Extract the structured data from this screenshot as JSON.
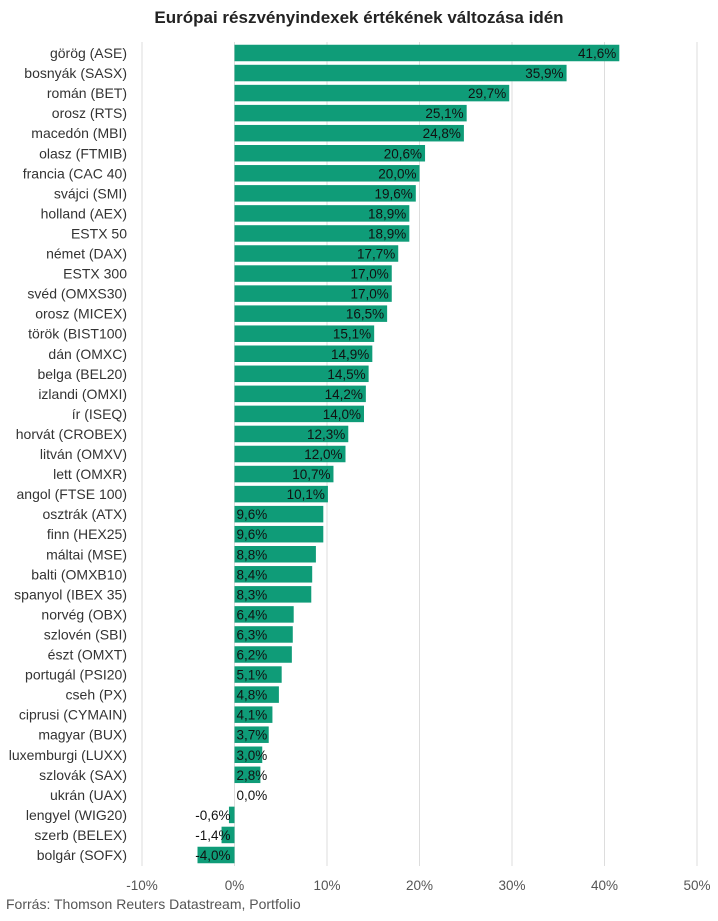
{
  "title": "Európai részvényindexek értékének változása idén",
  "source": "Forrás: Thomson Reuters Datastream, Portfolio",
  "colors": {
    "bar": "#0f9c78",
    "grid": "#dddddd",
    "text": "#333333"
  },
  "chart_data": {
    "type": "bar",
    "orientation": "horizontal",
    "title": "Európai részvényindexek értékének változása idén",
    "xlim": [
      -10,
      50
    ],
    "xticks": [
      -10,
      0,
      10,
      20,
      30,
      40,
      50
    ],
    "xtick_labels": [
      "-10%",
      "0%",
      "10%",
      "20%",
      "30%",
      "40%",
      "50%"
    ],
    "grid": true,
    "categories": [
      "görög (ASE)",
      "bosnyák (SASX)",
      "román (BET)",
      "orosz (RTS)",
      "macedón (MBI)",
      "olasz (FTMIB)",
      "francia (CAC 40)",
      "svájci (SMI)",
      "holland (AEX)",
      "ESTX 50",
      "német (DAX)",
      "ESTX 300",
      "svéd (OMXS30)",
      "orosz (MICEX)",
      "török (BIST100)",
      "dán (OMXC)",
      "belga (BEL20)",
      "izlandi (OMXI)",
      "ír (ISEQ)",
      "horvát (CROBEX)",
      "litván (OMXV)",
      "lett (OMXR)",
      "angol (FTSE 100)",
      "osztrák (ATX)",
      "finn (HEX25)",
      "máltai (MSE)",
      "balti (OMXB10)",
      "spanyol (IBEX 35)",
      "norvég (OBX)",
      "szlovén (SBI)",
      "észt (OMXT)",
      "portugál (PSI20)",
      "cseh (PX)",
      "ciprusi (CYMAIN)",
      "magyar (BUX)",
      "luxemburgi (LUXX)",
      "szlovák (SAX)",
      "ukrán (UAX)",
      "lengyel (WIG20)",
      "szerb (BELEX)",
      "bolgár (SOFX)"
    ],
    "values": [
      41.6,
      35.9,
      29.7,
      25.1,
      24.8,
      20.6,
      20.0,
      19.6,
      18.9,
      18.9,
      17.7,
      17.0,
      17.0,
      16.5,
      15.1,
      14.9,
      14.5,
      14.2,
      14.0,
      12.3,
      12.0,
      10.7,
      10.1,
      9.6,
      9.6,
      8.8,
      8.4,
      8.3,
      6.4,
      6.3,
      6.2,
      5.1,
      4.8,
      4.1,
      3.7,
      3.0,
      2.8,
      0.0,
      -0.6,
      -1.4,
      -4.0
    ],
    "value_labels": [
      "41,6%",
      "35,9%",
      "29,7%",
      "25,1%",
      "24,8%",
      "20,6%",
      "20,0%",
      "19,6%",
      "18,9%",
      "18,9%",
      "17,7%",
      "17,0%",
      "17,0%",
      "16,5%",
      "15,1%",
      "14,9%",
      "14,5%",
      "14,2%",
      "14,0%",
      "12,3%",
      "12,0%",
      "10,7%",
      "10,1%",
      "9,6%",
      "9,6%",
      "8,8%",
      "8,4%",
      "8,3%",
      "6,4%",
      "6,3%",
      "6,2%",
      "5,1%",
      "4,8%",
      "4,1%",
      "3,7%",
      "3,0%",
      "2,8%",
      "0,0%",
      "-0,6%",
      "-1,4%",
      "-4,0%"
    ]
  }
}
